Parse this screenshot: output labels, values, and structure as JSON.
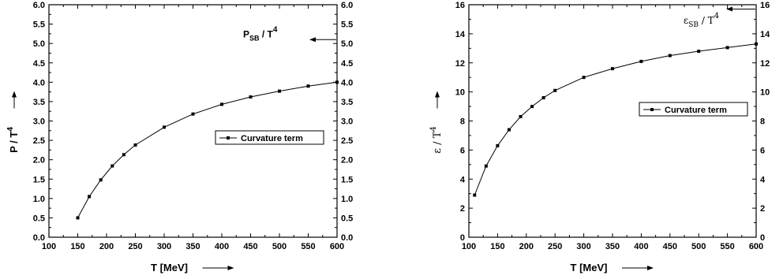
{
  "chart_data": [
    {
      "type": "line",
      "xlabel": "T  [MeV]",
      "ylabel": "P / T",
      "ylabel_sup": "4",
      "xlim": [
        100,
        600
      ],
      "ylim": [
        0.0,
        6.0
      ],
      "xticks": [
        "100",
        "150",
        "200",
        "250",
        "300",
        "350",
        "400",
        "450",
        "500",
        "550",
        "600"
      ],
      "yticks": [
        "0.0",
        "0.5",
        "1.0",
        "1.5",
        "2.0",
        "2.5",
        "3.0",
        "3.5",
        "4.0",
        "4.5",
        "5.0",
        "5.5",
        "6.0"
      ],
      "legend": "Curvature term",
      "legend_position": "center-right",
      "annotation": {
        "main": "P",
        "sub": "SB",
        "rest": " / T",
        "sup": "4",
        "y": 5.1
      },
      "series": [
        {
          "name": "Curvature term",
          "x": [
            150,
            170,
            190,
            210,
            230,
            250,
            300,
            350,
            400,
            450,
            500,
            550,
            600
          ],
          "y": [
            0.5,
            1.05,
            1.48,
            1.84,
            2.13,
            2.38,
            2.84,
            3.18,
            3.43,
            3.62,
            3.77,
            3.9,
            4.0
          ]
        }
      ]
    },
    {
      "type": "line",
      "xlabel": "T  [MeV]",
      "ylabel": "ε / T",
      "ylabel_sup": "4",
      "xlim": [
        100,
        600
      ],
      "ylim": [
        0,
        16
      ],
      "xticks": [
        "100",
        "150",
        "200",
        "250",
        "300",
        "350",
        "400",
        "450",
        "500",
        "550",
        "600"
      ],
      "yticks": [
        "0",
        "2",
        "4",
        "6",
        "8",
        "10",
        "12",
        "14",
        "16"
      ],
      "legend": "Curvature term",
      "legend_position": "center-right",
      "annotation": {
        "main": "ε",
        "sub": "SB",
        "rest": " / T",
        "sup": "4",
        "y": 15.7
      },
      "series": [
        {
          "name": "Curvature term",
          "x": [
            110,
            130,
            150,
            170,
            190,
            210,
            230,
            250,
            300,
            350,
            400,
            450,
            500,
            550,
            600
          ],
          "y": [
            2.9,
            4.9,
            6.3,
            7.4,
            8.3,
            9.0,
            9.6,
            10.1,
            11.0,
            11.6,
            12.1,
            12.5,
            12.8,
            13.05,
            13.3
          ]
        }
      ]
    }
  ]
}
